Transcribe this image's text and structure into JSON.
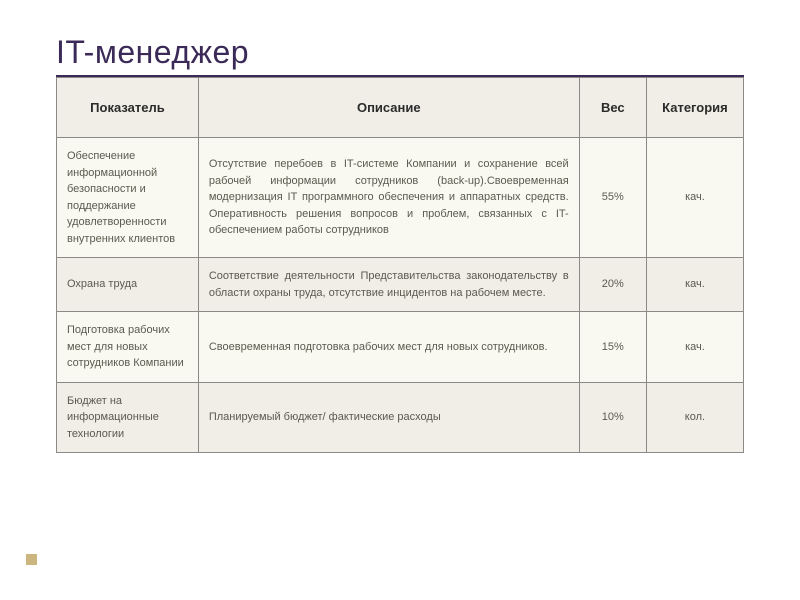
{
  "title": "IT-менеджер",
  "columns": {
    "indicator": "Показатель",
    "description": "Описание",
    "weight": "Вес",
    "category": "Категория"
  },
  "rows": [
    {
      "indicator": "Обеспечение информационной безопасности  и поддержание удовлетворенности внутренних клиентов",
      "description": "Отсутствие перебоев в IT-системе Компании и сохранение всей рабочей информации сотрудников (back-up).Своевременная модернизация IT программного обеспечения и аппаратных средств. Оперативность решения вопросов и проблем, связанных с IT-обеспечением работы сотрудников",
      "weight": "55%",
      "category": "кач."
    },
    {
      "indicator": "Охрана труда",
      "description": "Соответствие деятельности Представительства законодательству в области охраны труда, отсутствие инцидентов на рабочем месте.",
      "weight": "20%",
      "category": "кач."
    },
    {
      "indicator": "Подготовка рабочих мест для новых сотрудников Компании",
      "description": "Своевременная подготовка рабочих мест для новых сотрудников.",
      "weight": "15%",
      "category": "кач."
    },
    {
      "indicator": "Бюджет на информационные технологии",
      "description": "Планируемый бюджет/ фактические расходы",
      "weight": "10%",
      "category": "кол."
    }
  ],
  "colors": {
    "title": "#3b2a57",
    "rule": "#3b2a57",
    "border": "#8a8a86",
    "header_bg": "#f0eee7",
    "row_odd_bg": "#faf9f1",
    "row_even_bg": "#f0eee7",
    "bullet": "#cbb680"
  }
}
